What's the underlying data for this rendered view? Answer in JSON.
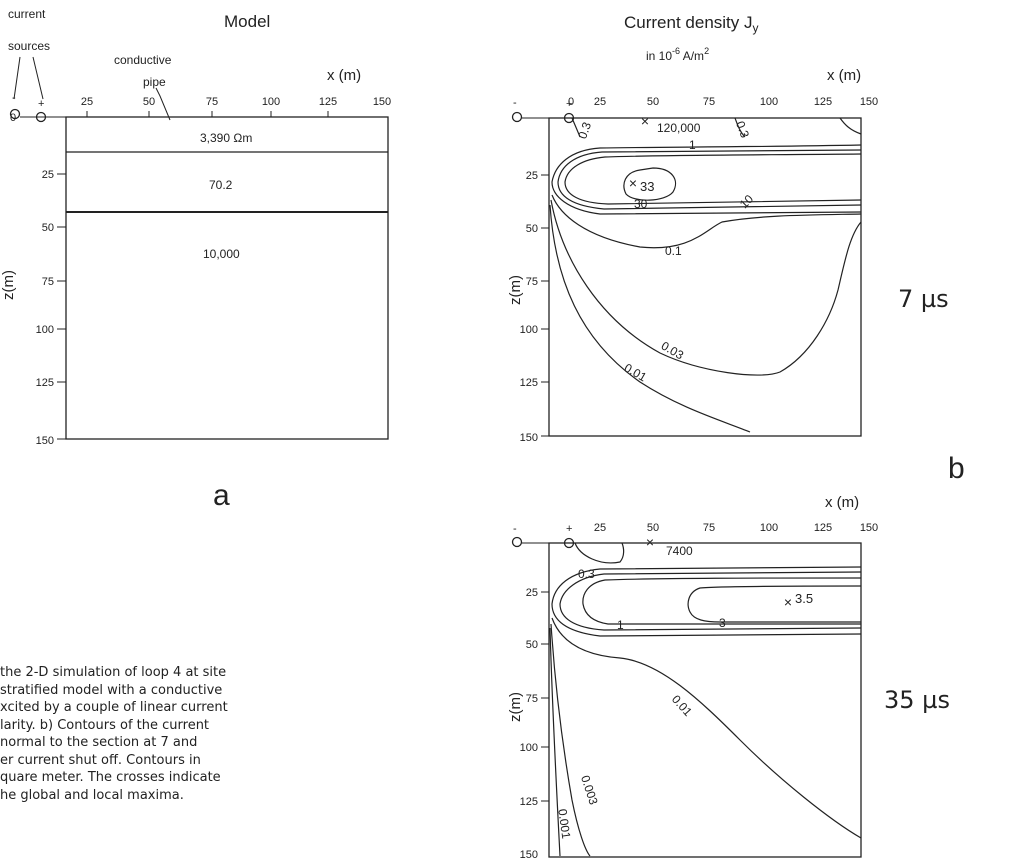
{
  "panel_a": {
    "title": "Model",
    "sources_label_1": "current",
    "sources_label_2": "sources",
    "pipe_label_1": "conductive",
    "pipe_label_2": "pipe",
    "x_label": "x (m)",
    "z_label": "z(m)",
    "minus": "-",
    "plus": "+",
    "x_ticks": [
      "25",
      "50",
      "75",
      "100",
      "125",
      "150"
    ],
    "z_ticks": [
      "25",
      "50",
      "75",
      "100",
      "125",
      "150"
    ],
    "z0_tick": "0",
    "layers": [
      "3,390 Ωm",
      "70.2",
      "10,000"
    ],
    "panel_letter": "a"
  },
  "panel_b": {
    "title": "Current density J",
    "title_sub": "y",
    "units_prefix": "in 10",
    "units_exp": "-6",
    "units_mid": " A/m",
    "units_exp2": "2",
    "x_label": "x (m)",
    "z_label": "z(m)",
    "panel_letter": "b",
    "time_7": "7  µs",
    "time_35": "35  µs",
    "top_labels": [
      "120,000",
      "33",
      "1",
      "0.3",
      "0.3",
      "30",
      "10",
      "0.1",
      "0.03",
      "0.01"
    ],
    "bottom_labels": [
      "7400",
      "3.5",
      "0.3",
      "1",
      "3",
      "0.01",
      "0.003",
      "0.001"
    ]
  },
  "caption_lines": [
    "the 2-D simulation of loop 4 at site",
    "stratified model with a conductive",
    "xcited by a couple of linear current",
    "larity.  b) Contours of the current",
    "normal to the section at 7 and",
    "er current shut off. Contours in",
    "quare meter. The crosses indicate",
    "he global and local maxima."
  ]
}
